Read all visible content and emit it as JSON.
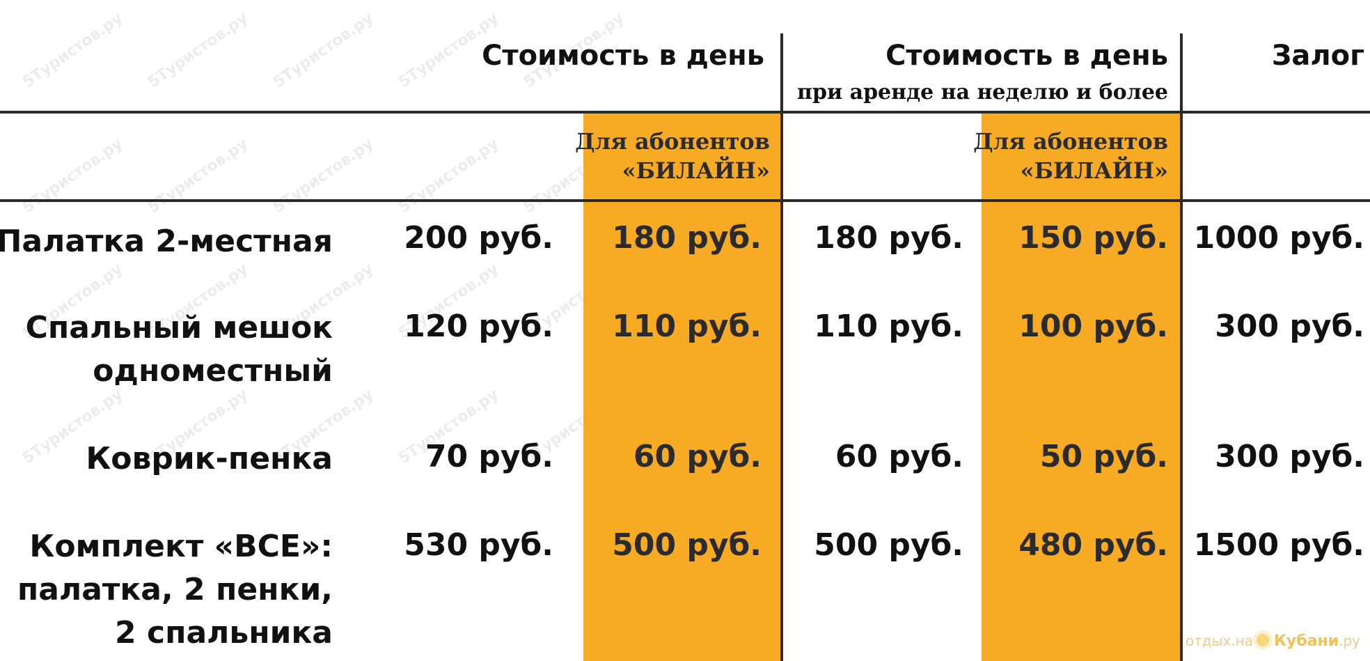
{
  "header": {
    "col_day": "Стоимость в день",
    "col_week": "Стоимость в день",
    "col_week_sub": "при аренде на неделю и более",
    "col_deposit": "Залог",
    "beeline_line1": "Для абонентов",
    "beeline_line2": "«БИЛАЙН»"
  },
  "rows": [
    {
      "item_lines": [
        "Палатка  2-местная"
      ],
      "day": "200 руб.",
      "day_beeline": "180 руб.",
      "week": "180 руб.",
      "week_beeline": "150 руб.",
      "deposit": "1000 руб."
    },
    {
      "item_lines": [
        "Спальный мешок",
        "одноместный"
      ],
      "day": "120 руб.",
      "day_beeline": "110 руб.",
      "week": "110 руб.",
      "week_beeline": "100 руб.",
      "deposit": "300 руб."
    },
    {
      "item_lines": [
        "Коврик-пенка"
      ],
      "day": "70 руб.",
      "day_beeline": "60 руб.",
      "week": "60 руб.",
      "week_beeline": "50 руб.",
      "deposit": "300 руб."
    },
    {
      "item_lines": [
        "Комплект «ВСЕ»:",
        "палатка, 2 пенки,",
        "2 спальника"
      ],
      "day": "530 руб.",
      "day_beeline": "500 руб.",
      "week": "500 руб.",
      "week_beeline": "480 руб.",
      "deposit": "1500 руб."
    }
  ],
  "logo": {
    "prefix": "отдых.",
    "na": "на",
    "brand": "Кубани",
    "suffix": ".ру"
  },
  "watermark": "5Туристов.ру",
  "colors": {
    "beeline_orange": "#f7aa23",
    "rule": "#2a2a2a"
  }
}
